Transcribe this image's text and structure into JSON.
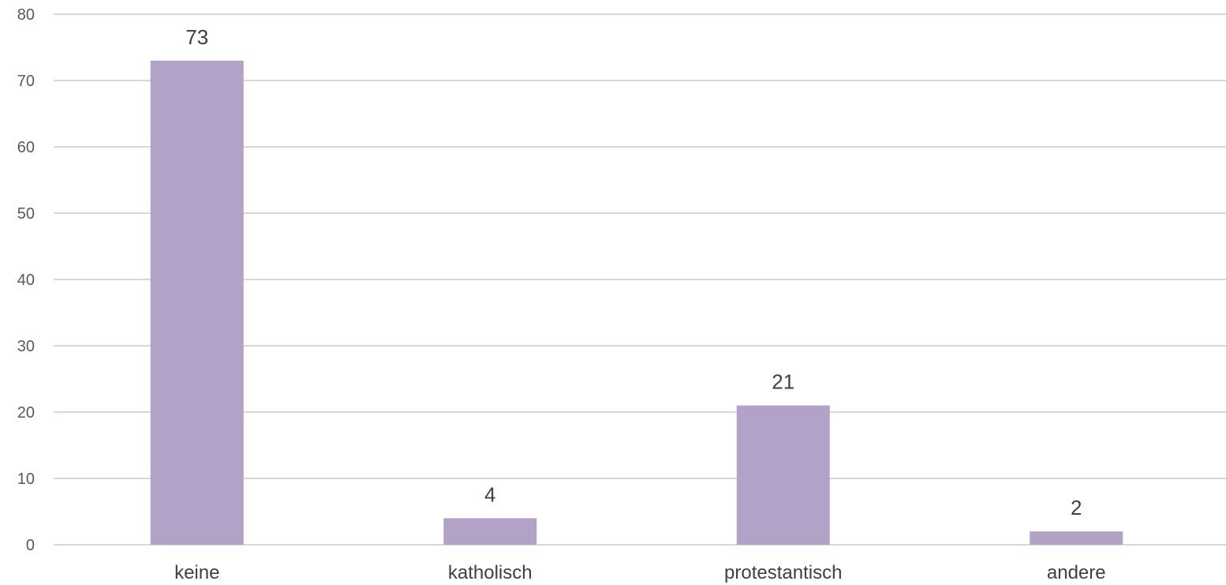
{
  "chart_data": {
    "type": "bar",
    "title": "",
    "xlabel": "",
    "ylabel": "",
    "categories": [
      "keine",
      "katholisch",
      "protestantisch",
      "andere"
    ],
    "values": [
      73,
      4,
      21,
      2
    ],
    "data_labels": [
      "73",
      "4",
      "21",
      "2"
    ],
    "ylim": [
      0,
      80
    ],
    "yticks": [
      0,
      10,
      20,
      30,
      40,
      50,
      60,
      70,
      80
    ],
    "ytick_labels": [
      "0",
      "10",
      "20",
      "30",
      "40",
      "50",
      "60",
      "70",
      "80"
    ],
    "grid": true,
    "legend": "none",
    "colors": {
      "bar": "#b3a2c7",
      "grid": "#d9d9d9",
      "tick_text": "#595959",
      "label_text": "#404040"
    }
  }
}
